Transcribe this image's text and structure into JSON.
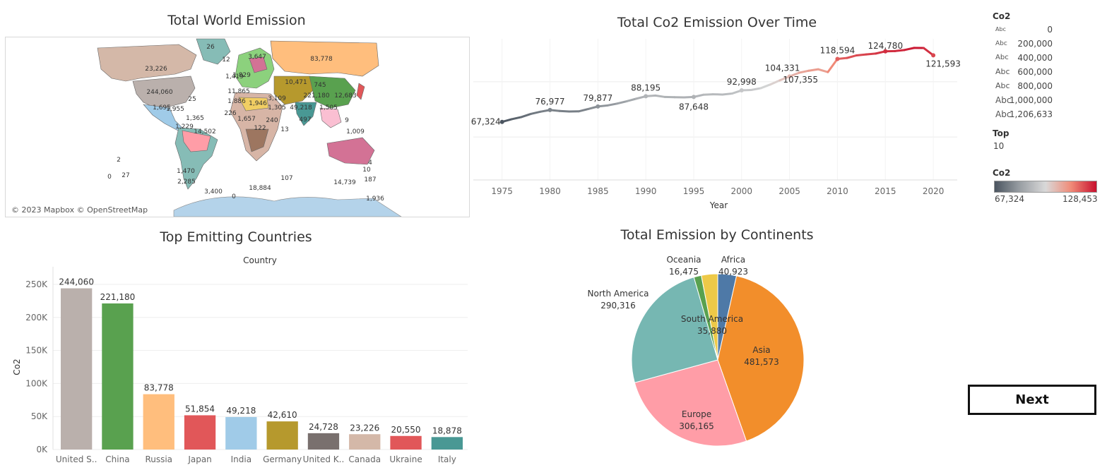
{
  "map": {
    "title": "Total World Emission",
    "attribution": "© 2023 Mapbox © OpenStreetMap",
    "labels": [
      "26",
      "12",
      "3,647",
      "83,778",
      "23,226",
      "1,419",
      "1,829",
      "10,471",
      "745",
      "244,060",
      "11,865",
      "221,180",
      "12,683",
      "25",
      "1,886",
      "1,946",
      "3,109",
      "1,695",
      "49,218",
      "1,505",
      "1,955",
      "1,365",
      "226",
      "1,657",
      "1,305",
      "14,502",
      "240",
      "497",
      "9",
      "2",
      "1,229",
      "122",
      "13",
      "1,009",
      "0",
      "27",
      "1,470",
      "2,285",
      "107",
      "4",
      "10",
      "187",
      "3,400",
      "18,884",
      "14,739",
      "0",
      "1,936"
    ]
  },
  "line_chart": {
    "title": "Total Co2 Emission Over Time",
    "xlabel": "Year"
  },
  "bar_chart": {
    "title": "Top Emitting Countries",
    "header": "Country",
    "ylabel": "Co2",
    "tick_labels": [
      "0K",
      "50K",
      "100K",
      "150K",
      "200K",
      "250K"
    ],
    "x_labels": [
      "United S..",
      "China",
      "Russia",
      "Japan",
      "India",
      "Germany",
      "United K..",
      "Canada",
      "Ukraine",
      "Italy"
    ]
  },
  "pie_chart": {
    "title": "Total Emission by Continents"
  },
  "legend": {
    "size_title": "Co2",
    "size_marker": "Abc",
    "size_values": [
      "0",
      "200,000",
      "400,000",
      "600,000",
      "800,000",
      "1,000,000",
      "1,206,633"
    ],
    "top_title": "Top",
    "top_value": "10",
    "color_title": "Co2",
    "color_min": "67,324",
    "color_max": "128,453",
    "colors": [
      "#4b5560",
      "#9a9fa4",
      "#d9d9d9",
      "#f08b78",
      "#c8102e"
    ]
  },
  "next_button": "Next",
  "chart_data": [
    {
      "type": "line",
      "title": "Total Co2 Emission Over Time",
      "xlabel": "Year",
      "x_ticks": [
        1975,
        1980,
        1985,
        1990,
        1995,
        2000,
        2005,
        2010,
        2015,
        2020
      ],
      "x": [
        1975,
        1976,
        1977,
        1978,
        1979,
        1980,
        1981,
        1982,
        1983,
        1984,
        1985,
        1986,
        1987,
        1988,
        1989,
        1990,
        1991,
        1992,
        1993,
        1994,
        1995,
        1996,
        1997,
        1998,
        1999,
        2000,
        2001,
        2002,
        2003,
        2004,
        2005,
        2006,
        2007,
        2008,
        2009,
        2010,
        2011,
        2012,
        2013,
        2014,
        2015,
        2016,
        2017,
        2018,
        2019,
        2020
      ],
      "y": [
        67324,
        69500,
        71200,
        73800,
        75600,
        76977,
        76200,
        75800,
        75900,
        77800,
        79877,
        80700,
        82200,
        84100,
        86200,
        88195,
        88800,
        87600,
        87400,
        87300,
        87648,
        89400,
        89800,
        89600,
        90400,
        92998,
        93300,
        94800,
        97800,
        101200,
        104331,
        107355,
        109000,
        110200,
        107900,
        118594,
        119400,
        121500,
        122300,
        123000,
        124780,
        125000,
        125900,
        127600,
        127500,
        121593
      ],
      "point_labels": [
        {
          "x": 1975,
          "text": "67,324"
        },
        {
          "x": 1980,
          "text": "76,977"
        },
        {
          "x": 1985,
          "text": "79,877"
        },
        {
          "x": 1990,
          "text": "88,195"
        },
        {
          "x": 1995,
          "text": "87,648"
        },
        {
          "x": 2000,
          "text": "92,998"
        },
        {
          "x": 2005,
          "text": "104,331"
        },
        {
          "x": 2006,
          "text": "107,355"
        },
        {
          "x": 2010,
          "text": "118,594"
        },
        {
          "x": 2015,
          "text": "124,780"
        },
        {
          "x": 2020,
          "text": "121,593"
        }
      ],
      "ylim": [
        20000,
        135000
      ],
      "grid": true,
      "color_scale": [
        "#4b5560",
        "#9a9fa4",
        "#d9d9d9",
        "#f08b78",
        "#c8102e"
      ],
      "color_range": [
        67324,
        128453
      ]
    },
    {
      "type": "bar",
      "title": "Top Emitting Countries",
      "xlabel": "Country",
      "ylabel": "Co2",
      "categories": [
        "United S..",
        "China",
        "Russia",
        "Japan",
        "India",
        "Germany",
        "United K..",
        "Canada",
        "Ukraine",
        "Italy"
      ],
      "values": [
        244060,
        221180,
        83778,
        51854,
        49218,
        42610,
        24728,
        23226,
        20550,
        18878
      ],
      "value_labels": [
        "244,060",
        "221,180",
        "83,778",
        "51,854",
        "49,218",
        "42,610",
        "24,728",
        "23,226",
        "20,550",
        "18,878"
      ],
      "colors": [
        "#bab0ac",
        "#59a14f",
        "#ffbe7d",
        "#e15759",
        "#a0cbe8",
        "#b6992d",
        "#79706e",
        "#d4b8a8",
        "#e15759",
        "#499894"
      ],
      "ylim": [
        0,
        250000
      ],
      "yticks": [
        0,
        50000,
        100000,
        150000,
        200000,
        250000
      ],
      "grid": true
    },
    {
      "type": "pie",
      "title": "Total Emission by Continents",
      "labels": [
        "Africa",
        "Asia",
        "Europe",
        "North America",
        "Oceania",
        "South America"
      ],
      "values": [
        40923,
        481573,
        306165,
        290316,
        16475,
        35880
      ],
      "value_labels": [
        "40,923",
        "481,573",
        "306,165",
        "290,316",
        "16,475",
        "35,880"
      ],
      "colors": [
        "#4e79a7",
        "#f28e2b",
        "#ff9da7",
        "#76b7b2",
        "#59a14f",
        "#edc948"
      ]
    }
  ]
}
